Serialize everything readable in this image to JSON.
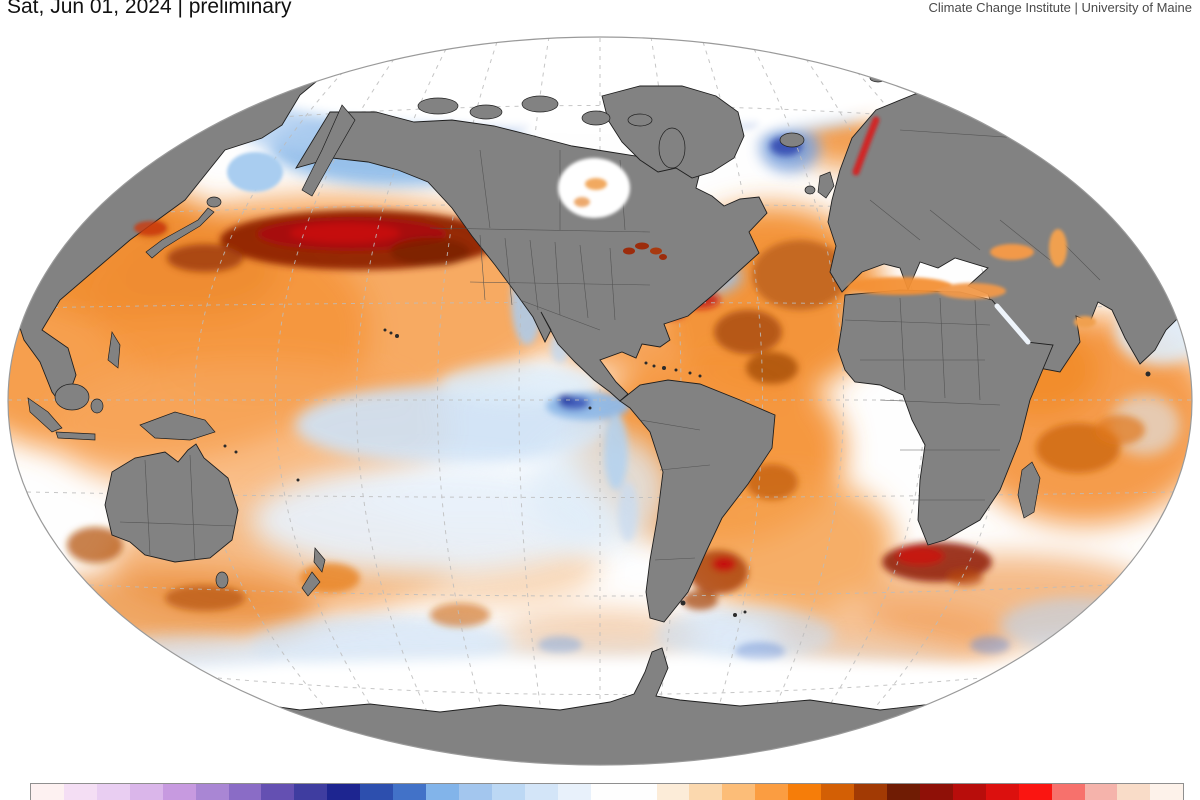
{
  "header": {
    "title": "Sat, Jun 01, 2024 | preliminary",
    "attribution": "Climate Change Institute | University of Maine"
  },
  "map": {
    "kind": "world-sea-surface-temperature-anomaly",
    "projection": "winkel-tripel-ellipse",
    "land_color": "#828282",
    "land_border_color": "#4f4f4f",
    "coastline_color": "#1f1f1f",
    "sea_ice_color": "#ffffff",
    "ocean_base_color": "#fefefe",
    "outline_color": "#9a9a9a",
    "graticule_color": "#bcbcbc"
  },
  "chart_data": {
    "type": "heatmap",
    "title": "Sea surface temperature anomaly (world map)",
    "date_label": "Sat, Jun 01, 2024",
    "status": "preliminary",
    "source": "Climate Change Institute | University of Maine",
    "legend_position": "bottom",
    "regions": [
      {
        "region": "Central North Pacific",
        "anomaly": "intense warm band (dark red)"
      },
      {
        "region": "Bering Sea / Gulf of Alaska",
        "anomaly": "cool (blue)"
      },
      {
        "region": "California coast",
        "anomaly": "cool (light blue)"
      },
      {
        "region": "Eastern equatorial Pacific",
        "anomaly": "cool tongue (blue)"
      },
      {
        "region": "Western / tropical Pacific",
        "anomaly": "warm (orange)"
      },
      {
        "region": "North Atlantic",
        "anomaly": "broad strong warm with dark patches"
      },
      {
        "region": "Newfoundland / Labrador waters",
        "anomaly": "cool (blue)"
      },
      {
        "region": "Baltic Sea",
        "anomaly": "very warm (red)"
      },
      {
        "region": "Mediterranean Sea",
        "anomaly": "warm (orange)"
      },
      {
        "region": "Tropical / South Atlantic",
        "anomaly": "warm (orange)"
      },
      {
        "region": "Argentine shelf eddies",
        "anomaly": "mixed strong warm and cool eddies"
      },
      {
        "region": "Agulhas retroflection",
        "anomaly": "strong warm eddies (dark red)"
      },
      {
        "region": "Indian Ocean",
        "anomaly": "warm (orange)"
      },
      {
        "region": "Bay of Bengal",
        "anomaly": "near normal / slightly cool"
      },
      {
        "region": "Southern Ocean",
        "anomaly": "alternating warm/cool eddy band"
      },
      {
        "region": "Arctic Ocean",
        "anomaly": "ice covered (white, no data)"
      },
      {
        "region": "Antarctic margin",
        "anomaly": "ice covered (white, no data)"
      }
    ]
  },
  "colorbar": {
    "border_color": "#8f8f8f",
    "colors": [
      "#fdf1f1",
      "#f4def4",
      "#e9cef2",
      "#dab6ea",
      "#c79ae0",
      "#a986d4",
      "#8a6cc6",
      "#6450b2",
      "#3f3da0",
      "#1d2590",
      "#2d4fae",
      "#4272c8",
      "#82b4ea",
      "#a3c6ee",
      "#bcd8f4",
      "#d3e5f8",
      "#e8f1fb",
      "#fefefe",
      "#fefefe",
      "#fcecd8",
      "#fbd8ae",
      "#fcbd78",
      "#fb9d41",
      "#f67d09",
      "#d35f05",
      "#a23a04",
      "#701c04",
      "#8f1007",
      "#b80d0b",
      "#dc100e",
      "#fa1511",
      "#f7716c",
      "#f5b3ab",
      "#f9dcc8",
      "#fdf2ea"
    ]
  }
}
